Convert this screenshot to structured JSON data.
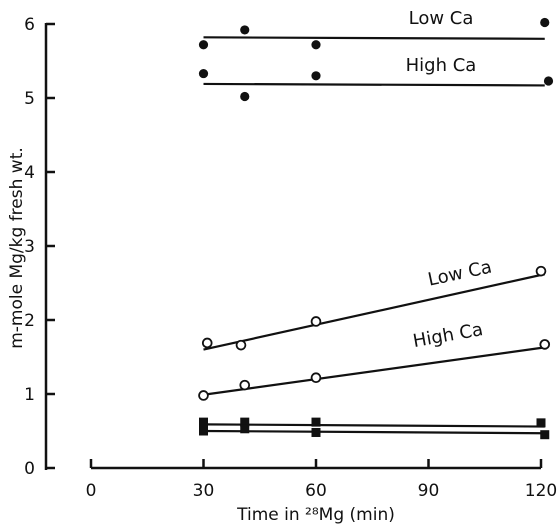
{
  "chart_data": {
    "type": "scatter",
    "xlabel": "Time in ²⁸Mg (min)",
    "ylabel": "m-mole Mg/kg fresh wt.",
    "xlim": [
      0,
      120
    ],
    "ylim": [
      0,
      6
    ],
    "xticks": [
      0,
      30,
      60,
      90,
      120
    ],
    "yticks": [
      0,
      1,
      2,
      3,
      4,
      5,
      6
    ],
    "annotations": [
      {
        "text": "Low Ca",
        "series": "filled-low"
      },
      {
        "text": "High Ca",
        "series": "filled-high"
      },
      {
        "text": "Low Ca",
        "series": "open-low"
      },
      {
        "text": "High Ca",
        "series": "open-high"
      }
    ],
    "series": [
      {
        "marker": "filled-circle",
        "points": [
          [
            30,
            5.72
          ],
          [
            41,
            5.92
          ],
          [
            60,
            5.72
          ],
          [
            121,
            6.02
          ]
        ],
        "fit": [
          [
            30,
            5.82
          ],
          [
            121,
            5.8
          ]
        ]
      },
      {
        "marker": "filled-circle",
        "points": [
          [
            30,
            5.33
          ],
          [
            41,
            5.02
          ],
          [
            60,
            5.3
          ],
          [
            122,
            5.23
          ]
        ],
        "fit": [
          [
            30,
            5.19
          ],
          [
            121,
            5.17
          ]
        ]
      },
      {
        "marker": "open-circle",
        "points": [
          [
            31,
            1.69
          ],
          [
            40,
            1.66
          ],
          [
            60,
            1.98
          ],
          [
            120,
            2.66
          ]
        ],
        "fit": [
          [
            30,
            1.6
          ],
          [
            121,
            2.62
          ]
        ]
      },
      {
        "marker": "open-circle",
        "points": [
          [
            30,
            0.98
          ],
          [
            41,
            1.12
          ],
          [
            60,
            1.22
          ],
          [
            121,
            1.67
          ]
        ],
        "fit": [
          [
            30,
            0.99
          ],
          [
            121,
            1.63
          ]
        ]
      },
      {
        "marker": "filled-square",
        "points": [
          [
            30,
            0.62
          ],
          [
            41,
            0.62
          ],
          [
            60,
            0.62
          ],
          [
            120,
            0.61
          ]
        ],
        "fit": [
          [
            30,
            0.59
          ],
          [
            121,
            0.56
          ]
        ]
      },
      {
        "marker": "filled-square",
        "points": [
          [
            30,
            0.5
          ],
          [
            41,
            0.53
          ],
          [
            60,
            0.48
          ],
          [
            121,
            0.45
          ]
        ],
        "fit": [
          [
            30,
            0.5
          ],
          [
            121,
            0.47
          ]
        ]
      }
    ]
  }
}
